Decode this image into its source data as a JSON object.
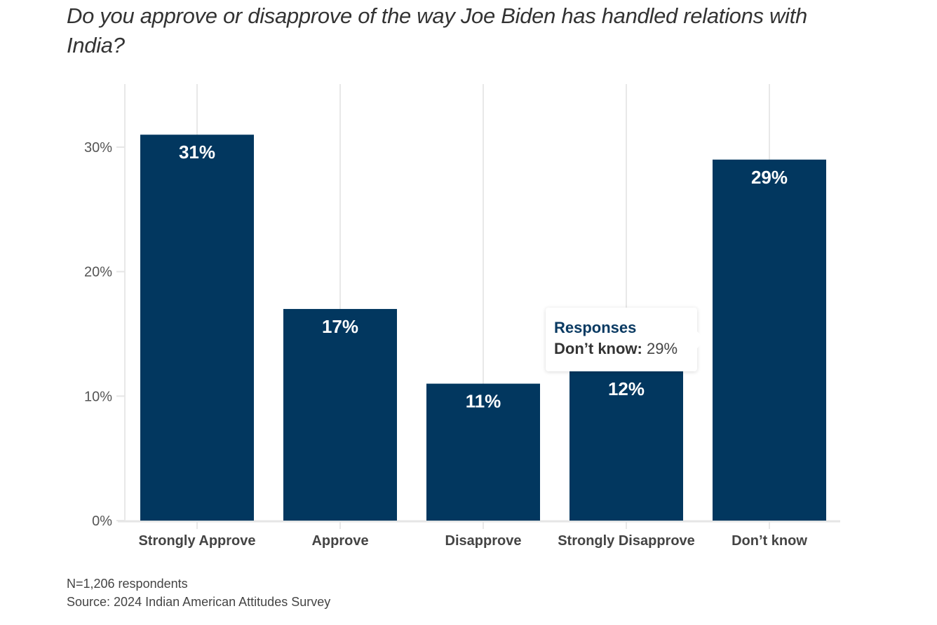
{
  "chart_data": {
    "type": "bar",
    "title": "Do you approve or disapprove of the way Joe Biden has handled relations with India?",
    "xlabel": "",
    "ylabel": "",
    "categories": [
      "Strongly Approve",
      "Approve",
      "Disapprove",
      "Strongly Disapprove",
      "Don’t know"
    ],
    "values": [
      31,
      17,
      11,
      12,
      29
    ],
    "data_labels": [
      "31%",
      "17%",
      "11%",
      "12%",
      "29%"
    ],
    "series_name": "Responses",
    "ylim": [
      0,
      35
    ],
    "yticks": [
      0,
      10,
      20,
      30
    ],
    "ytick_labels": [
      "0%",
      "10%",
      "20%",
      "30%"
    ],
    "grid": "vertical",
    "bar_color": "#02375f",
    "legend": "none"
  },
  "tooltip": {
    "title": "Responses",
    "category": "Don’t know:",
    "value": "29%"
  },
  "footer": {
    "note": "N=1,206 respondents",
    "source": "Source: 2024 Indian American Attitudes Survey"
  }
}
